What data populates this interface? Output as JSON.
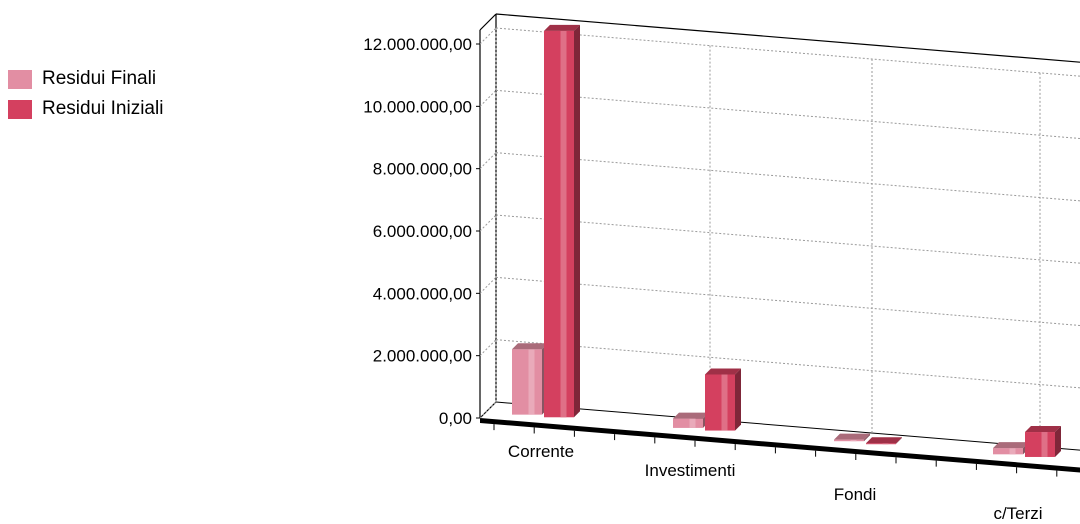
{
  "chart_data": {
    "type": "bar",
    "categories": [
      "Corrente",
      "Investimenti",
      "Fondi",
      "c/Terzi"
    ],
    "series": [
      {
        "name": "Residui Finali",
        "values": [
          2100000,
          300000,
          50000,
          200000
        ],
        "color": "#e28ea3"
      },
      {
        "name": "Residui Iniziali",
        "values": [
          12400000,
          1800000,
          20000,
          800000
        ],
        "color": "#d4405f"
      }
    ],
    "ylim": [
      0,
      12000000
    ],
    "y_ticks": [
      "0,00",
      "2.000.000,00",
      "4.000.000,00",
      "6.000.000,00",
      "8.000.000,00",
      "10.000.000,00",
      "12.000.000,00"
    ],
    "grid": true,
    "legend_position": "top-left",
    "title": "",
    "xlabel": "",
    "ylabel": ""
  }
}
